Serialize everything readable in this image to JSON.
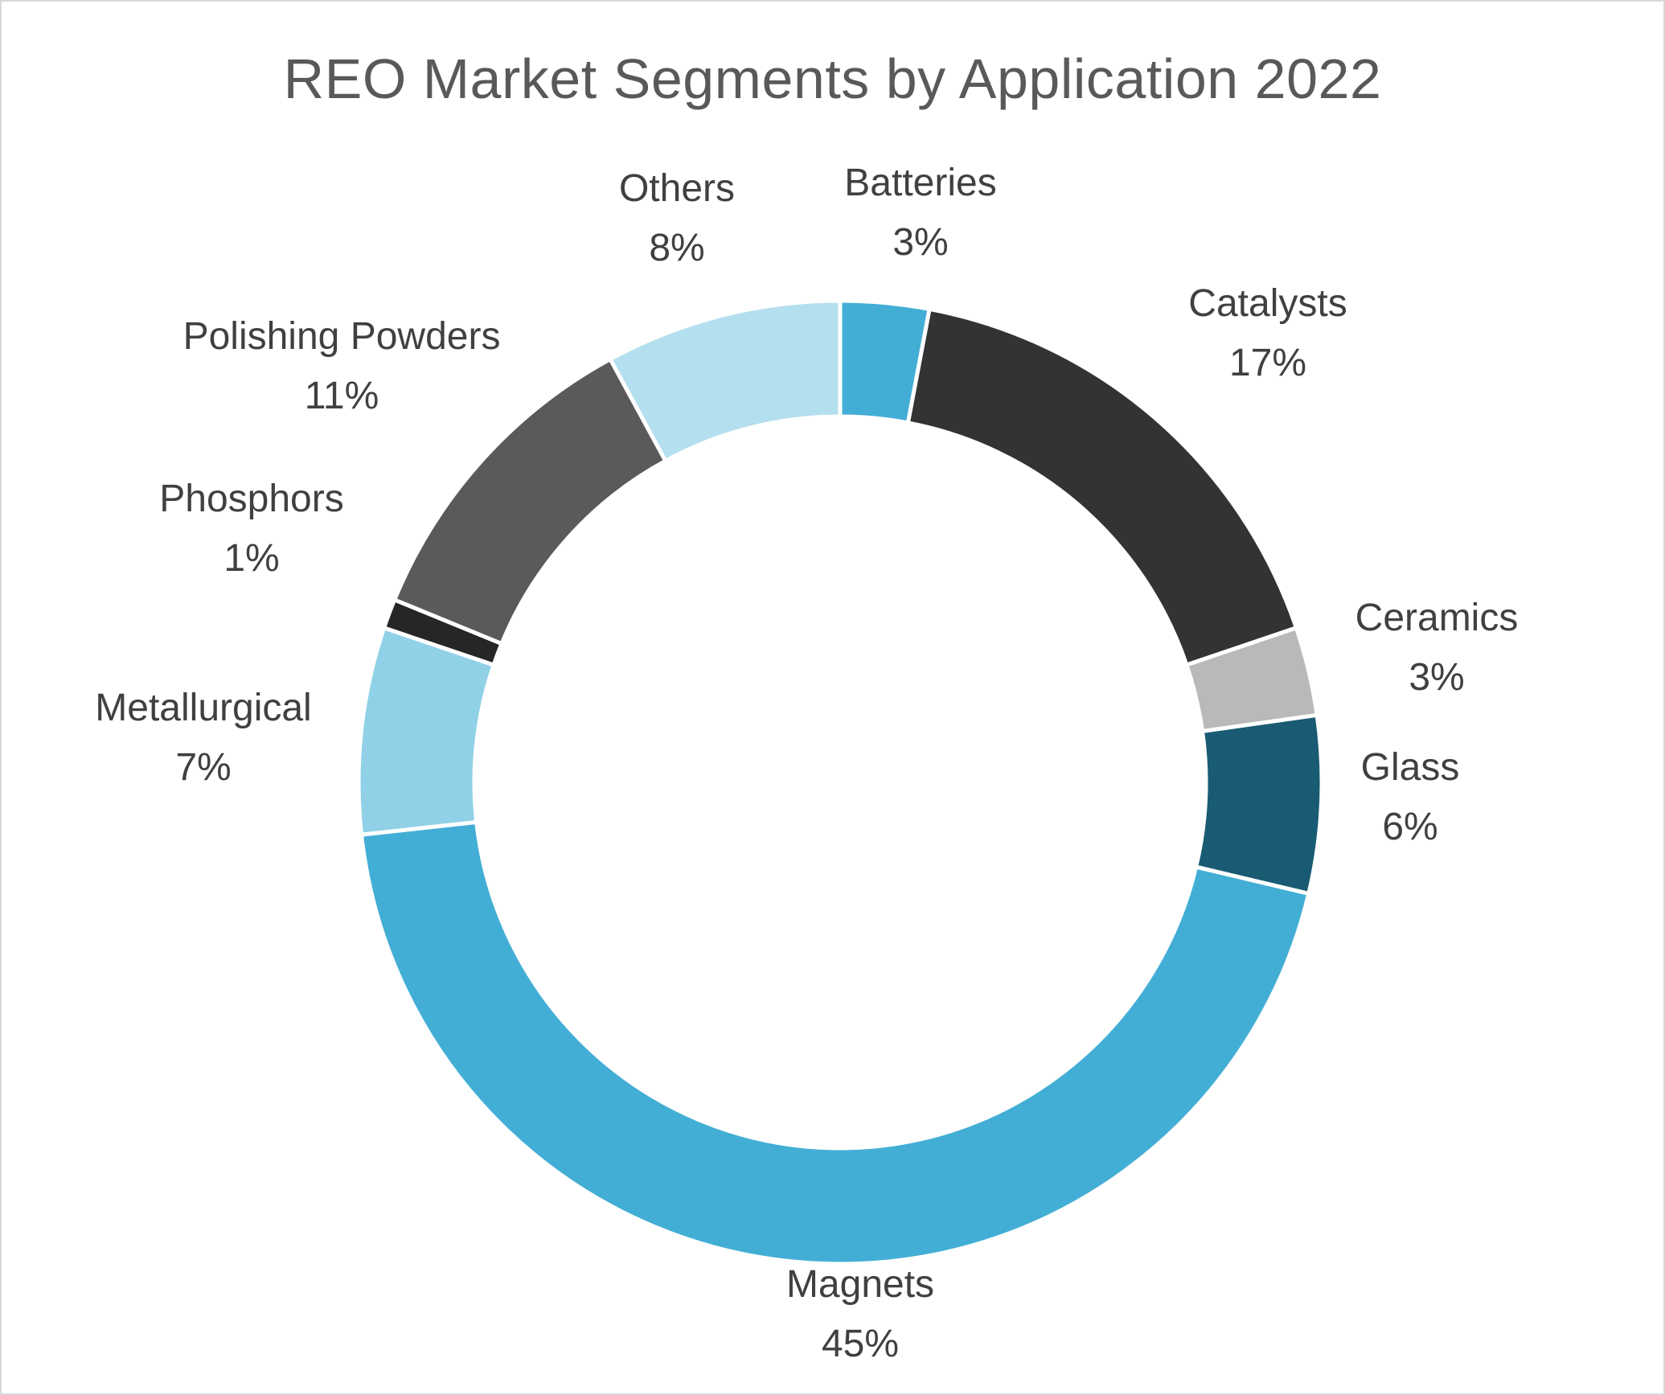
{
  "chart_data": {
    "type": "pie",
    "subtype": "donut",
    "title": "REO Market Segments by Application 2022",
    "slices": [
      {
        "name": "Batteries",
        "value": 3,
        "label": "3%",
        "color": "#43AED5"
      },
      {
        "name": "Catalysts",
        "value": 17,
        "label": "17%",
        "color": "#333333"
      },
      {
        "name": "Ceramics",
        "value": 3,
        "label": "3%",
        "color": "#B9B9B9"
      },
      {
        "name": "Glass",
        "value": 6,
        "label": "6%",
        "color": "#195B72"
      },
      {
        "name": "Magnets",
        "value": 45,
        "label": "45%",
        "color": "#43AED5"
      },
      {
        "name": "Metallurgical",
        "value": 7,
        "label": "7%",
        "color": "#90D1E7"
      },
      {
        "name": "Phosphors",
        "value": 1,
        "label": "1%",
        "color": "#262626"
      },
      {
        "name": "Polishing Powders",
        "value": 11,
        "label": "11%",
        "color": "#5B5A5B"
      },
      {
        "name": "Others",
        "value": 8,
        "label": "8%",
        "color": "#B4DFEE"
      }
    ],
    "legend": "none",
    "data_labels": "outside"
  }
}
